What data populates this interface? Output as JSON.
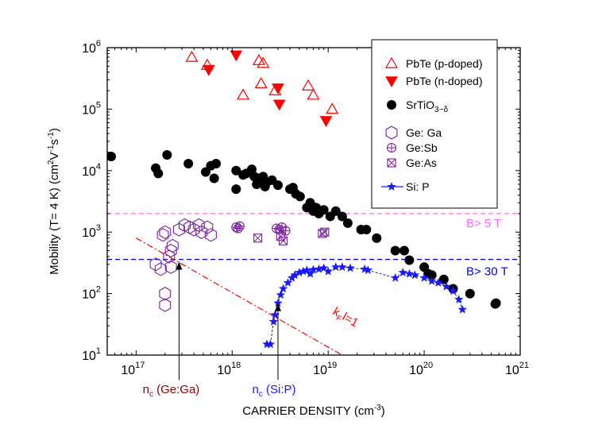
{
  "chart_data": {
    "type": "scatter",
    "title": "",
    "xlabel": "CARRIER DENSITY (cm",
    "xlabel_sup": "-3",
    "xlabel_end": ")",
    "ylabel": "Mobility (T= 4 K) (cm",
    "ylabel_sup1": "2",
    "ylabel_mid": "V",
    "ylabel_sup2": "-1",
    "ylabel_mid2": "s",
    "ylabel_sup3": "-1",
    "ylabel_end": ")",
    "xscale": "log",
    "yscale": "log",
    "xlim": [
      5e+16,
      1e+21
    ],
    "ylim": [
      10,
      1000000
    ],
    "x_ticks": [
      {
        "value": 1e+17,
        "base": "10",
        "exp": "17"
      },
      {
        "value": 1e+18,
        "base": "10",
        "exp": "18"
      },
      {
        "value": 1e+19,
        "base": "10",
        "exp": "19"
      },
      {
        "value": 1e+20,
        "base": "10",
        "exp": "20"
      },
      {
        "value": 1e+21,
        "base": "10",
        "exp": "21"
      }
    ],
    "y_ticks": [
      {
        "value": 10,
        "base": "10",
        "exp": "1"
      },
      {
        "value": 100,
        "base": "10",
        "exp": "2"
      },
      {
        "value": 1000,
        "base": "10",
        "exp": "3"
      },
      {
        "value": 10000,
        "base": "10",
        "exp": "4"
      },
      {
        "value": 100000,
        "base": "10",
        "exp": "5"
      },
      {
        "value": 1000000,
        "base": "10",
        "exp": "6"
      }
    ],
    "legend_position": "top-right",
    "series": [
      {
        "name": "PbTe (p-doped)",
        "marker": "triangle-up-open",
        "color": "#ff0000",
        "x": [
          3.8e+17,
          5.5e+17,
          1.9e+18,
          2.1e+18,
          2e+18,
          2.8e+18,
          1.3e+18,
          6.2e+18,
          7e+18,
          1.1e+19
        ],
        "y": [
          700000,
          520000,
          620000,
          560000,
          260000,
          200000,
          170000,
          240000,
          170000,
          100000
        ]
      },
      {
        "name": "PbTe (n-doped)",
        "marker": "triangle-down-filled",
        "color": "#ff0000",
        "x": [
          5.7e+17,
          1.1e+18,
          3e+18,
          3.1e+18,
          9.5e+18
        ],
        "y": [
          440000,
          760000,
          220000,
          120000,
          65000
        ]
      },
      {
        "name": "SrTiO3−δ",
        "name_main": "SrTiO",
        "name_sub": "3−δ",
        "marker": "circle-filled",
        "color": "#000000",
        "x": [
          5.5e+16,
          1.6e+17,
          1.7e+17,
          2.1e+17,
          3.5e+17,
          5.3e+17,
          6e+17,
          6.5e+17,
          6.8e+17,
          1.1e+18,
          1.1e+18,
          1.3e+18,
          1.4e+18,
          1.6e+18,
          1.7e+18,
          1.8e+18,
          1.9e+18,
          2e+18,
          2.1e+18,
          2.2e+18,
          2.3e+18,
          2.6e+18,
          3e+18,
          4e+18,
          4.3e+18,
          4.6e+18,
          5.1e+18,
          6e+18,
          6.5e+18,
          7e+18,
          7.5e+18,
          8e+18,
          9e+18,
          1.05e+19,
          1.2e+19,
          1.4e+19,
          1.6e+19,
          2.2e+19,
          2.5e+19,
          3.2e+19,
          5e+19,
          6.2e+19,
          7e+19,
          1e+20,
          1.1e+20,
          1.2e+20,
          1.6e+20,
          2e+20,
          3e+20,
          5.5e+20,
          5.6e+20
        ],
        "y": [
          17000,
          11000,
          9000,
          18000,
          13000,
          9500,
          12000,
          7500,
          13000,
          10000,
          5000,
          8500,
          9000,
          10500,
          8000,
          6000,
          7500,
          6500,
          8000,
          5500,
          6500,
          7000,
          5800,
          5000,
          5300,
          4200,
          3800,
          2500,
          3000,
          2200,
          2500,
          2000,
          2300,
          1800,
          2200,
          1800,
          1400,
          1100,
          1100,
          800,
          500,
          500,
          350,
          270,
          210,
          200,
          170,
          120,
          100,
          68,
          70
        ]
      },
      {
        "name": "Ge: Ga",
        "marker": "hexagon-open",
        "color": "#7b1fa2",
        "x": [
          1.6e+17,
          1.8e+17,
          1.9e+17,
          2e+17,
          2.3e+17,
          2.4e+17,
          2.2e+17,
          2.8e+17,
          3.2e+17,
          3.6e+17,
          4e+17,
          4.5e+17,
          4.8e+17,
          5.5e+17,
          6e+17,
          2e+17,
          2e+17,
          2.3e+17
        ],
        "y": [
          300,
          250,
          900,
          1000,
          500,
          600,
          400,
          1100,
          1300,
          1200,
          1100,
          1300,
          1000,
          1200,
          900,
          100,
          65,
          270
        ]
      },
      {
        "name": "Ge:Sb",
        "marker": "circle-plus",
        "color": "#7b1fa2",
        "x": [
          1.1e+18,
          1.15e+18,
          1.2e+18,
          2.9e+18,
          3.1e+18,
          3.3e+18,
          3.6e+18
        ],
        "y": [
          1200,
          1150,
          1250,
          1150,
          1100,
          1200,
          1050
        ]
      },
      {
        "name": "Ge:As",
        "marker": "square-x",
        "color": "#7b1fa2",
        "x": [
          1.85e+18,
          3.2e+18,
          3.4e+18,
          8.7e+18,
          9.2e+18
        ],
        "y": [
          800,
          850,
          720,
          950,
          1000
        ]
      },
      {
        "name": "Si: P",
        "marker": "star-filled",
        "color": "#1a1aff",
        "x": [
          2.3e+18,
          2.5e+18,
          2.7e+18,
          2.8e+18,
          3e+18,
          3.2e+18,
          3.4e+18,
          3.8e+18,
          4.2e+18,
          4.5e+18,
          5e+18,
          5.5e+18,
          6e+18,
          6.5e+18,
          7e+18,
          8e+18,
          9e+18,
          1e+19,
          1.2e+19,
          1.4e+19,
          1.7e+19,
          2.4e+19,
          2.6e+19,
          5e+19,
          6e+19,
          7e+19,
          8e+19,
          1e+20,
          1.2e+20,
          1.4e+20,
          1.7e+20,
          2e+20,
          2.3e+20,
          2.5e+20
        ],
        "y": [
          15,
          15,
          35,
          45,
          70,
          95,
          120,
          150,
          180,
          200,
          220,
          230,
          240,
          210,
          245,
          250,
          260,
          230,
          270,
          270,
          260,
          250,
          240,
          180,
          220,
          210,
          200,
          180,
          160,
          150,
          130,
          110,
          80,
          55
        ]
      }
    ],
    "reference_lines": [
      {
        "name": "B> 5 T",
        "y": 2000,
        "color": "#ff66ff",
        "style": "dashed"
      },
      {
        "name": "B> 30 T",
        "y": 360,
        "color": "#0000ff",
        "style": "dashed"
      },
      {
        "name": "k",
        "label_sub": "F",
        "label_end": "l=1",
        "color": "#ff0000",
        "style": "dash-dot",
        "from": [
          1e+17,
          800
        ],
        "to": [
          1.4e+19,
          10
        ]
      }
    ],
    "annotations": [
      {
        "name": "n",
        "label_sub": "c",
        "label_end": " (Ge:Ga)",
        "x": 2.8e+17,
        "color": "#8b0000"
      },
      {
        "name": "n",
        "label_sub": "c",
        "label_end": " (Si:P)",
        "x": 3e+18,
        "color": "#1a1aff"
      }
    ]
  }
}
